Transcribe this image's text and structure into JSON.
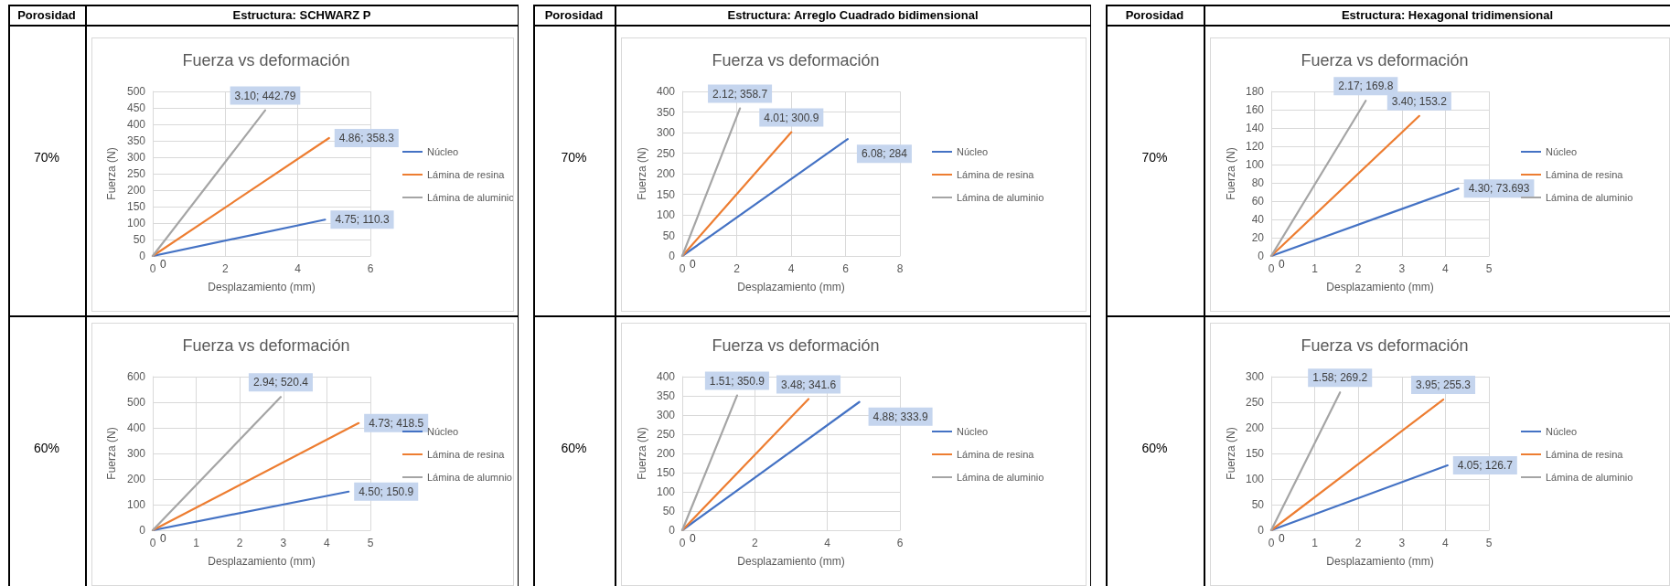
{
  "chart_data": [
    {
      "type": "other",
      "annotations": [
        "Porosidad",
        "Estructura: SCHWARZ P",
        "70%",
        "60%"
      ]
    },
    {
      "type": "line",
      "title": "Fuerza vs deformación",
      "xlabel": "Desplazamiento (mm)",
      "ylabel": "Fuerza (N)",
      "xlim": [
        0,
        6
      ],
      "xticks": [
        0,
        2,
        4,
        6
      ],
      "ylim": [
        0,
        500
      ],
      "yticks": [
        0,
        50,
        100,
        150,
        200,
        250,
        300,
        350,
        400,
        450,
        500
      ],
      "grid": true,
      "legend": "right",
      "series": [
        {
          "name": "Núcleo",
          "color": "#4472c4",
          "x": [
            0,
            4.75
          ],
          "values": [
            0,
            110.3
          ],
          "value_labels": [
            "0",
            "4.75; 110.3"
          ]
        },
        {
          "name": "Lámina de resina",
          "color": "#ed7d31",
          "x": [
            0,
            4.86
          ],
          "values": [
            0,
            358.3
          ],
          "value_labels": [
            null,
            "4.86; 358.3"
          ]
        },
        {
          "name": "Lámina de aluminio",
          "color": "#a5a5a5",
          "x": [
            0,
            3.1
          ],
          "values": [
            0,
            442.79
          ],
          "value_labels": [
            null,
            "3.10; 442.79"
          ]
        }
      ]
    },
    {
      "type": "line",
      "title": "Fuerza vs deformación",
      "xlabel": "Desplazamiento (mm)",
      "ylabel": "Fuerza (N)",
      "xlim": [
        0,
        5
      ],
      "xticks": [
        0,
        1,
        2,
        3,
        4,
        5
      ],
      "ylim": [
        0,
        600
      ],
      "yticks": [
        0,
        100,
        200,
        300,
        400,
        500,
        600
      ],
      "grid": true,
      "legend": "right",
      "series": [
        {
          "name": "Núcleo",
          "color": "#4472c4",
          "x": [
            0,
            4.5
          ],
          "values": [
            0,
            150.9
          ],
          "value_labels": [
            null,
            "4.50; 150.9"
          ]
        },
        {
          "name": "Lámina de resina",
          "color": "#ed7d31",
          "x": [
            0,
            4.73
          ],
          "values": [
            0,
            418.5
          ],
          "value_labels": [
            null,
            "4.73; 418.5"
          ]
        },
        {
          "name": "Lámina de alumnio",
          "color": "#a5a5a5",
          "x": [
            0,
            2.94
          ],
          "values": [
            0,
            520.4
          ],
          "value_labels": [
            "0",
            "2.94; 520.4"
          ]
        }
      ]
    },
    {
      "type": "other",
      "annotations": [
        "Porosidad",
        "Estructura: Arreglo Cuadrado bidimensional",
        "70%",
        "60%"
      ]
    },
    {
      "type": "line",
      "title": "Fuerza vs deformación",
      "xlabel": "Desplazamiento (mm)",
      "ylabel": "Fuerza (N)",
      "xlim": [
        0,
        8
      ],
      "xticks": [
        0,
        2,
        4,
        6,
        8
      ],
      "ylim": [
        0,
        400
      ],
      "yticks": [
        0,
        50,
        100,
        150,
        200,
        250,
        300,
        350,
        400
      ],
      "grid": true,
      "legend": "right",
      "series": [
        {
          "name": "Núcleo",
          "color": "#4472c4",
          "x": [
            0,
            6.08
          ],
          "values": [
            0,
            284
          ],
          "value_labels": [
            "0",
            "6.08; 284"
          ]
        },
        {
          "name": "Lámina de resina",
          "color": "#ed7d31",
          "x": [
            0,
            4.01
          ],
          "values": [
            0,
            300.9
          ],
          "value_labels": [
            null,
            "4.01; 300.9"
          ]
        },
        {
          "name": "Lámina de aluminio",
          "color": "#a5a5a5",
          "x": [
            0,
            2.12
          ],
          "values": [
            0,
            358.7
          ],
          "value_labels": [
            null,
            "2.12; 358.7"
          ]
        }
      ]
    },
    {
      "type": "line",
      "title": "Fuerza vs deformación",
      "xlabel": "Desplazamiento (mm)",
      "ylabel": "Fuerza (N)",
      "xlim": [
        0,
        6
      ],
      "xticks": [
        0,
        2,
        4,
        6
      ],
      "ylim": [
        0,
        400
      ],
      "yticks": [
        0,
        50,
        100,
        150,
        200,
        250,
        300,
        350,
        400
      ],
      "grid": true,
      "legend": "right",
      "series": [
        {
          "name": "Núcleo",
          "color": "#4472c4",
          "x": [
            0,
            4.88
          ],
          "values": [
            0,
            333.9
          ],
          "value_labels": [
            null,
            "4.88; 333.9"
          ]
        },
        {
          "name": "Lámina de resina",
          "color": "#ed7d31",
          "x": [
            0,
            3.48
          ],
          "values": [
            0,
            341.6
          ],
          "value_labels": [
            null,
            "3.48; 341.6"
          ]
        },
        {
          "name": "Lámina de aluminio",
          "color": "#a5a5a5",
          "x": [
            0,
            1.51
          ],
          "values": [
            0,
            350.9
          ],
          "value_labels": [
            "0",
            "1.51; 350.9"
          ]
        }
      ]
    },
    {
      "type": "other",
      "annotations": [
        "Porosidad",
        "Estructura: Hexagonal tridimensional",
        "70%",
        "60%"
      ]
    },
    {
      "type": "line",
      "title": "Fuerza vs deformación",
      "xlabel": "Desplazamiento (mm)",
      "ylabel": "Fuerza (N)",
      "xlim": [
        0,
        5
      ],
      "xticks": [
        0,
        1,
        2,
        3,
        4,
        5
      ],
      "ylim": [
        0,
        180
      ],
      "yticks": [
        0,
        20,
        40,
        60,
        80,
        100,
        120,
        140,
        160,
        180
      ],
      "grid": true,
      "legend": "right",
      "series": [
        {
          "name": "Núcleo",
          "color": "#4472c4",
          "x": [
            0,
            4.3
          ],
          "values": [
            0,
            73.693
          ],
          "value_labels": [
            "0",
            "4.30; 73.693"
          ]
        },
        {
          "name": "Lámina de resina",
          "color": "#ed7d31",
          "x": [
            0,
            3.4
          ],
          "values": [
            0,
            153.2
          ],
          "value_labels": [
            null,
            "3.40; 153.2"
          ]
        },
        {
          "name": "Lámina de aluminio",
          "color": "#a5a5a5",
          "x": [
            0,
            2.17
          ],
          "values": [
            0,
            169.8
          ],
          "value_labels": [
            null,
            "2.17; 169.8"
          ]
        }
      ]
    },
    {
      "type": "line",
      "title": "Fuerza vs deformación",
      "xlabel": "Desplazamiento (mm)",
      "ylabel": "Fuerza (N)",
      "xlim": [
        0,
        5
      ],
      "xticks": [
        0,
        1,
        2,
        3,
        4,
        5
      ],
      "ylim": [
        0,
        300
      ],
      "yticks": [
        0,
        50,
        100,
        150,
        200,
        250,
        300
      ],
      "grid": true,
      "legend": "right",
      "series": [
        {
          "name": "Núcleo",
          "color": "#4472c4",
          "x": [
            0,
            4.05
          ],
          "values": [
            0,
            126.7
          ],
          "value_labels": [
            null,
            "4.05; 126.7"
          ]
        },
        {
          "name": "Lámina de resina",
          "color": "#ed7d31",
          "x": [
            0,
            3.95
          ],
          "values": [
            0,
            255.3
          ],
          "value_labels": [
            null,
            "3.95; 255.3"
          ]
        },
        {
          "name": "Lámina de aluminio",
          "color": "#a5a5a5",
          "x": [
            0,
            1.58
          ],
          "values": [
            0,
            269.2
          ],
          "value_labels": [
            "0",
            "1.58; 269.2"
          ]
        }
      ]
    }
  ]
}
